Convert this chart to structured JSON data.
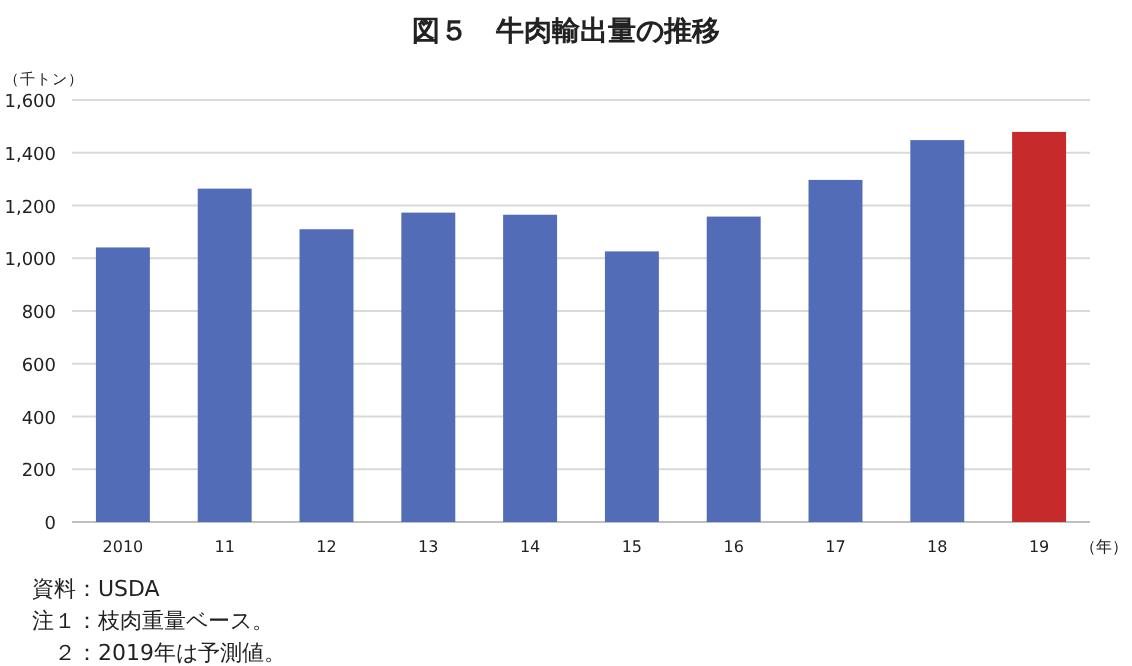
{
  "chart_data": {
    "type": "bar",
    "title": "図５　牛肉輸出量の推移",
    "ylabel": "（千トン）",
    "xlabel": "（年）",
    "categories": [
      "2010",
      "11",
      "12",
      "13",
      "14",
      "15",
      "16",
      "17",
      "18",
      "19"
    ],
    "values": [
      1041,
      1264,
      1110,
      1173,
      1165,
      1026,
      1158,
      1297,
      1448,
      1479
    ],
    "colors": [
      "#536cb8",
      "#536cb8",
      "#536cb8",
      "#536cb8",
      "#536cb8",
      "#536cb8",
      "#536cb8",
      "#536cb8",
      "#536cb8",
      "#c62a2a"
    ],
    "ylim": [
      0,
      1600
    ],
    "yticks": [
      {
        "value": 0,
        "label": "0"
      },
      {
        "value": 200,
        "label": "200"
      },
      {
        "value": 400,
        "label": "400"
      },
      {
        "value": 600,
        "label": "600"
      },
      {
        "value": 800,
        "label": "800"
      },
      {
        "value": 1000,
        "label": "1,000"
      },
      {
        "value": 1200,
        "label": "1,200"
      },
      {
        "value": 1400,
        "label": "1,400"
      },
      {
        "value": 1600,
        "label": "1,600"
      }
    ],
    "grid": "y",
    "annotations": [
      "資料：USDA",
      "注１：枝肉重量ベース。",
      "　２：2019年は予測値。"
    ]
  }
}
